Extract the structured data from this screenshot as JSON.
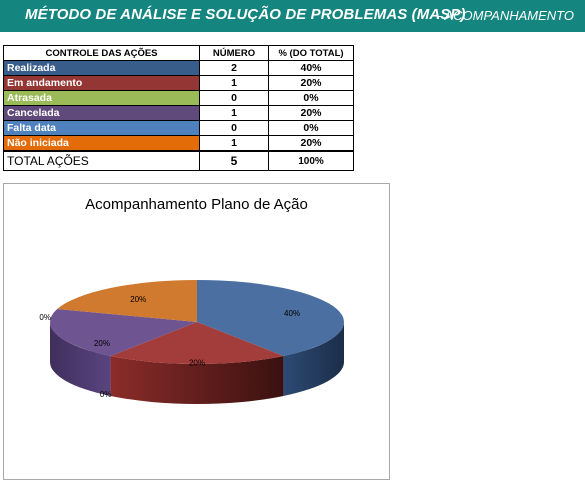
{
  "header": {
    "title": "MÉTODO DE ANÁLISE E SOLUÇÃO DE PROBLEMAS (MASP)",
    "subtitle": "- ACOMPANHAMENTO"
  },
  "table": {
    "headers": [
      "CONTROLE DAS AÇÕES",
      "NÚMERO",
      "% (DO TOTAL)"
    ],
    "rows": [
      {
        "label": "Realizada",
        "number": "2",
        "percent": "40%",
        "color": "#385d8a"
      },
      {
        "label": "Em andamento",
        "number": "1",
        "percent": "20%",
        "color": "#943634"
      },
      {
        "label": "Atrasada",
        "number": "0",
        "percent": "0%",
        "color": "#9bbb59"
      },
      {
        "label": "Cancelada",
        "number": "1",
        "percent": "20%",
        "color": "#604a7b"
      },
      {
        "label": "Falta data",
        "number": "0",
        "percent": "0%",
        "color": "#4f81bd"
      },
      {
        "label": "Não iniciada",
        "number": "1",
        "percent": "20%",
        "color": "#e36c09"
      }
    ],
    "total": {
      "label": "TOTAL AÇÕES",
      "number": "5",
      "percent": "100%"
    }
  },
  "chart_data": {
    "type": "pie",
    "title": "Acompanhamento Plano de Ação",
    "categories": [
      "Realizada",
      "Em andamento",
      "Atrasada",
      "Cancelada",
      "Falta data",
      "Não iniciada"
    ],
    "values": [
      2,
      1,
      0,
      1,
      0,
      1
    ],
    "data_labels": [
      "40%",
      "20%",
      "0%",
      "20%",
      "0%",
      "20%"
    ],
    "colors": [
      "#4a6fa0",
      "#a33d3b",
      "#9bbb59",
      "#6e5490",
      "#4f81bd",
      "#d07a30"
    ],
    "style": "3d",
    "legend": "none"
  }
}
